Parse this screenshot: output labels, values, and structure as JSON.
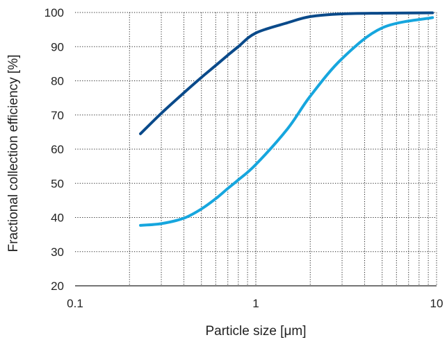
{
  "chart_data": {
    "type": "line",
    "title": "",
    "xlabel": "Particle size [μm]",
    "ylabel": "Fractional collection efficiency [%]",
    "xscale": "log",
    "xlim": [
      0.1,
      10
    ],
    "ylim": [
      20,
      100
    ],
    "xticks": [
      {
        "value": 0.1,
        "label": "0.1"
      },
      {
        "value": 1,
        "label": "1"
      },
      {
        "value": 10,
        "label": "10"
      }
    ],
    "yticks": [
      {
        "value": 20,
        "label": "20"
      },
      {
        "value": 30,
        "label": "30"
      },
      {
        "value": 40,
        "label": "40"
      },
      {
        "value": 50,
        "label": "50"
      },
      {
        "value": 60,
        "label": "60"
      },
      {
        "value": 70,
        "label": "70"
      },
      {
        "value": 80,
        "label": "80"
      },
      {
        "value": 90,
        "label": "90"
      },
      {
        "value": 100,
        "label": "100"
      }
    ],
    "grid": true,
    "legend": "none",
    "series": [
      {
        "color": "#0a4a8a",
        "x": [
          0.23,
          0.3,
          0.4,
          0.5,
          0.6,
          0.7,
          0.8,
          1.0,
          1.5,
          2.0,
          3.0,
          5.0,
          9.5
        ],
        "y": [
          64.5,
          70.5,
          76.5,
          81.0,
          84.5,
          87.5,
          90.0,
          94.0,
          97.0,
          98.8,
          99.6,
          99.8,
          99.9
        ]
      },
      {
        "color": "#16a6de",
        "x": [
          0.23,
          0.3,
          0.4,
          0.5,
          0.6,
          0.7,
          0.8,
          1.0,
          1.5,
          2.0,
          3.0,
          5.0,
          9.5
        ],
        "y": [
          37.7,
          38.2,
          39.8,
          42.5,
          45.5,
          48.5,
          51.0,
          55.5,
          66.0,
          75.5,
          86.5,
          95.5,
          98.5
        ]
      }
    ]
  }
}
